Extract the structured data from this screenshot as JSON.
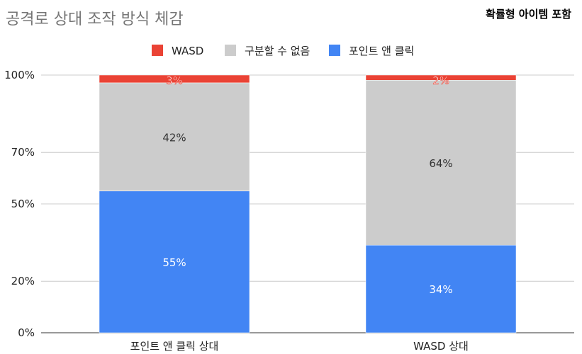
{
  "chart_data": {
    "type": "bar",
    "stacked": true,
    "title": "공격로 상대 조작 방식 체감",
    "subtitle": "확률형 아이템 포함",
    "categories": [
      "포인트 앤 클릭 상대",
      "WASD 상대"
    ],
    "series": [
      {
        "name": "포인트 앤 클릭",
        "color": "#4285f4",
        "values": [
          55,
          34
        ],
        "labels": [
          "55%",
          "34%"
        ],
        "label_color": "#ffffff"
      },
      {
        "name": "구분할 수 없음",
        "color": "#cccccc",
        "values": [
          42,
          64
        ],
        "labels": [
          "42%",
          "64%"
        ],
        "label_color": "#333333"
      },
      {
        "name": "WASD",
        "color": "#ea4335",
        "values": [
          3,
          2
        ],
        "labels": [
          "3%",
          "2%"
        ],
        "label_color": "#ffffff"
      }
    ],
    "legend_order": [
      "WASD",
      "구분할 수 없음",
      "포인트 앤 클릭"
    ],
    "y_ticks": [
      {
        "value": 0,
        "label": "0%"
      },
      {
        "value": 20,
        "label": "20%"
      },
      {
        "value": 50,
        "label": "50%"
      },
      {
        "value": 70,
        "label": "70%"
      },
      {
        "value": 100,
        "label": "100%"
      }
    ],
    "ylim": [
      0,
      100
    ],
    "legend_position": "top",
    "grid": true
  }
}
